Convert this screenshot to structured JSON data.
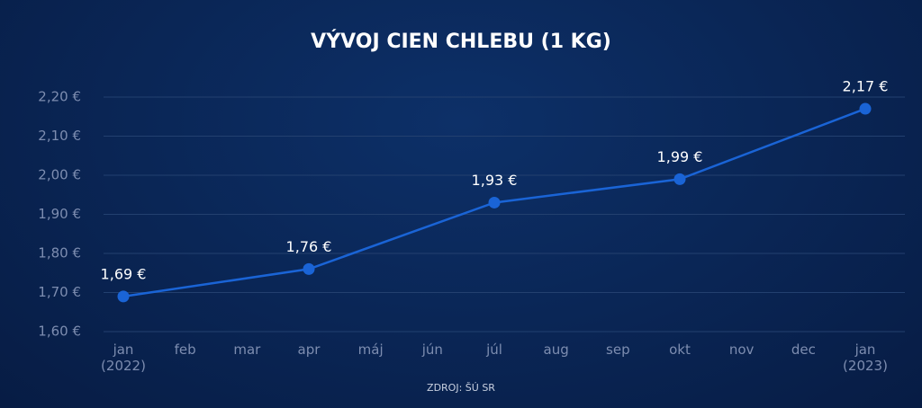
{
  "chart_data": {
    "type": "line",
    "title": "VÝVOJ CIEN CHLEBU (1 KG)",
    "source": "ZDROJ: ŠÚ SR",
    "x": [
      0,
      3,
      6,
      9,
      12
    ],
    "series": [
      {
        "color": "#1a64d6",
        "values": [
          1.69,
          1.76,
          1.93,
          1.99,
          2.17
        ],
        "value_labels": [
          "1,69 €",
          "1,76 €",
          "1,93 €",
          "1,99 €",
          "2,17 €"
        ]
      }
    ],
    "xlim": [
      0,
      12
    ],
    "xticks": [
      {
        "value": 0,
        "label": "jan (2022)"
      },
      {
        "value": 1,
        "label": "feb"
      },
      {
        "value": 2,
        "label": "mar"
      },
      {
        "value": 3,
        "label": "apr"
      },
      {
        "value": 4,
        "label": "máj"
      },
      {
        "value": 5,
        "label": "jún"
      },
      {
        "value": 6,
        "label": "júl"
      },
      {
        "value": 7,
        "label": "aug"
      },
      {
        "value": 8,
        "label": "sep"
      },
      {
        "value": 9,
        "label": "okt"
      },
      {
        "value": 10,
        "label": "nov"
      },
      {
        "value": 11,
        "label": "dec"
      },
      {
        "value": 12,
        "label": "jan (2023)"
      }
    ],
    "ylim": [
      1.6,
      2.2
    ],
    "yticks": [
      {
        "value": 1.6,
        "label": "1,60 €"
      },
      {
        "value": 1.7,
        "label": "1,70 €"
      },
      {
        "value": 1.8,
        "label": "1,80 €"
      },
      {
        "value": 1.9,
        "label": "1,90 €"
      },
      {
        "value": 2.0,
        "label": "2,00 €"
      },
      {
        "value": 2.1,
        "label": "2,10 €"
      },
      {
        "value": 2.2,
        "label": "2,20 €"
      }
    ],
    "grid": true
  }
}
